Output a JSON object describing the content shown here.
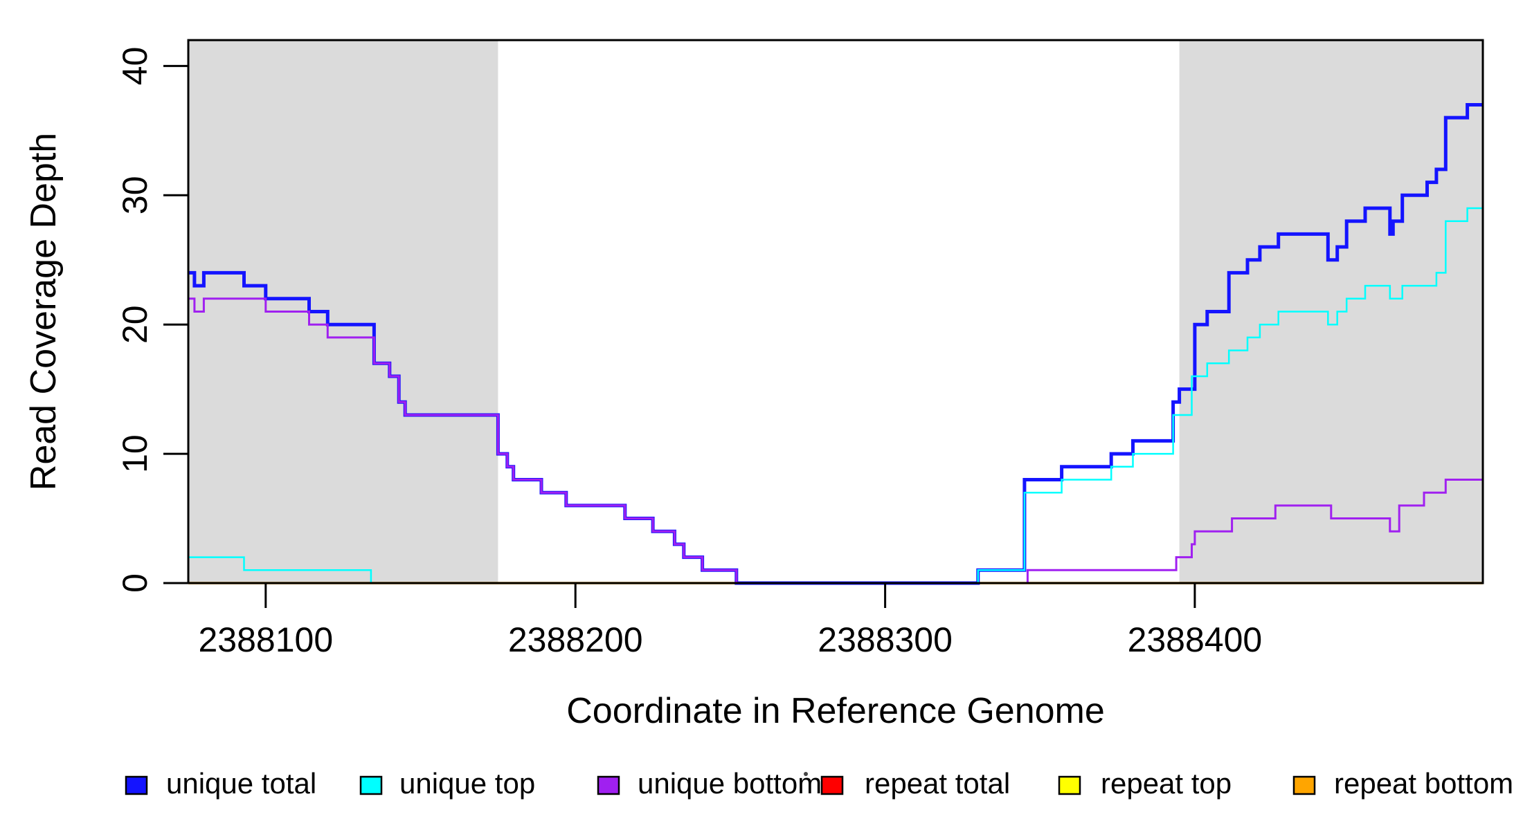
{
  "figure_title": "",
  "y_axis": {
    "label": "Read Coverage Depth",
    "ticks": [
      0,
      10,
      20,
      30,
      40
    ],
    "range": [
      0,
      42
    ]
  },
  "x_axis": {
    "label": "Coordinate in Reference Genome",
    "ticks": [
      2388100,
      2388200,
      2388300,
      2388400
    ],
    "range": [
      2388075,
      2388493
    ]
  },
  "shaded_repeat_regions": [
    {
      "from": 2388075,
      "to": 2388175
    },
    {
      "from": 2388395,
      "to": 2388493
    }
  ],
  "colors": {
    "shade": "#dbdbdb",
    "axis": "#000000",
    "unique_total": "#1414ff",
    "unique_top": "#00ffff",
    "unique_bottom": "#a020f0",
    "repeat_total": "#ff0000",
    "repeat_top": "#ffff00",
    "repeat_bottom": "#ffa500"
  },
  "legend": {
    "items": [
      {
        "label": "unique total",
        "color": "#1414ff"
      },
      {
        "label": "unique top",
        "color": "#00ffff"
      },
      {
        "label": "unique bottom",
        "color": "#a020f0"
      },
      {
        "label": "repeat total",
        "color": "#ff0000"
      },
      {
        "label": "repeat top",
        "color": "#ffff00"
      },
      {
        "label": "repeat bottom",
        "color": "#ffa500"
      }
    ]
  },
  "chart_data": {
    "type": "line",
    "step": "after",
    "title": "",
    "xlabel": "Coordinate in Reference Genome",
    "ylabel": "Read Coverage Depth",
    "xlim": [
      2388075,
      2388493
    ],
    "ylim": [
      0,
      42
    ],
    "grid": false,
    "legend_position": "bottom",
    "series": [
      {
        "name": "repeat total",
        "color": "#ff0000",
        "width": 2,
        "points": [
          [
            2388075,
            0
          ]
        ]
      },
      {
        "name": "repeat top",
        "color": "#ffff00",
        "width": 2,
        "points": [
          [
            2388075,
            0
          ]
        ]
      },
      {
        "name": "repeat bottom",
        "color": "#ffa500",
        "width": 3.5,
        "points": [
          [
            2388075,
            0
          ]
        ]
      },
      {
        "name": "unique total",
        "color": "#1414ff",
        "width": 5,
        "points": [
          [
            2388075,
            24
          ],
          [
            2388077,
            23
          ],
          [
            2388080,
            24
          ],
          [
            2388093,
            23
          ],
          [
            2388100,
            22
          ],
          [
            2388114,
            21
          ],
          [
            2388120,
            20
          ],
          [
            2388135,
            17
          ],
          [
            2388140,
            16
          ],
          [
            2388143,
            14
          ],
          [
            2388145,
            13
          ],
          [
            2388175,
            10
          ],
          [
            2388178,
            9
          ],
          [
            2388180,
            8
          ],
          [
            2388189,
            7
          ],
          [
            2388197,
            6
          ],
          [
            2388216,
            5
          ],
          [
            2388225,
            4
          ],
          [
            2388232,
            3
          ],
          [
            2388235,
            2
          ],
          [
            2388241,
            1
          ],
          [
            2388252,
            0
          ],
          [
            2388330,
            1
          ],
          [
            2388345,
            8
          ],
          [
            2388357,
            9
          ],
          [
            2388373,
            10
          ],
          [
            2388380,
            11
          ],
          [
            2388393,
            14
          ],
          [
            2388395,
            15
          ],
          [
            2388400,
            20
          ],
          [
            2388404,
            21
          ],
          [
            2388411,
            24
          ],
          [
            2388417,
            25
          ],
          [
            2388421,
            26
          ],
          [
            2388427,
            27
          ],
          [
            2388443,
            25
          ],
          [
            2388446,
            26
          ],
          [
            2388449,
            28
          ],
          [
            2388455,
            29
          ],
          [
            2388463,
            27
          ],
          [
            2388464,
            28
          ],
          [
            2388467,
            30
          ],
          [
            2388475,
            31
          ],
          [
            2388478,
            32
          ],
          [
            2388481,
            36
          ],
          [
            2388488,
            37
          ]
        ]
      },
      {
        "name": "unique top",
        "color": "#00ffff",
        "width": 2.5,
        "points": [
          [
            2388075,
            2
          ],
          [
            2388093,
            1
          ],
          [
            2388134,
            0
          ],
          [
            2388330,
            1
          ],
          [
            2388345,
            7
          ],
          [
            2388357,
            8
          ],
          [
            2388373,
            9
          ],
          [
            2388380,
            10
          ],
          [
            2388393,
            13
          ],
          [
            2388399,
            16
          ],
          [
            2388404,
            17
          ],
          [
            2388411,
            18
          ],
          [
            2388417,
            19
          ],
          [
            2388421,
            20
          ],
          [
            2388427,
            21
          ],
          [
            2388443,
            20
          ],
          [
            2388446,
            21
          ],
          [
            2388449,
            22
          ],
          [
            2388455,
            23
          ],
          [
            2388463,
            22
          ],
          [
            2388467,
            23
          ],
          [
            2388478,
            24
          ],
          [
            2388481,
            28
          ],
          [
            2388488,
            29
          ]
        ]
      },
      {
        "name": "unique bottom",
        "color": "#a020f0",
        "width": 3,
        "points": [
          [
            2388075,
            22
          ],
          [
            2388077,
            21
          ],
          [
            2388080,
            22
          ],
          [
            2388100,
            21
          ],
          [
            2388114,
            20
          ],
          [
            2388120,
            19
          ],
          [
            2388135,
            17
          ],
          [
            2388140,
            16
          ],
          [
            2388143,
            14
          ],
          [
            2388145,
            13
          ],
          [
            2388175,
            10
          ],
          [
            2388178,
            9
          ],
          [
            2388180,
            8
          ],
          [
            2388189,
            7
          ],
          [
            2388197,
            6
          ],
          [
            2388216,
            5
          ],
          [
            2388225,
            4
          ],
          [
            2388232,
            3
          ],
          [
            2388235,
            2
          ],
          [
            2388241,
            1
          ],
          [
            2388252,
            0
          ],
          [
            2388346,
            1
          ],
          [
            2388394,
            2
          ],
          [
            2388399,
            3
          ],
          [
            2388400,
            4
          ],
          [
            2388412,
            5
          ],
          [
            2388426,
            6
          ],
          [
            2388444,
            5
          ],
          [
            2388463,
            4
          ],
          [
            2388466,
            6
          ],
          [
            2388474,
            7
          ],
          [
            2388481,
            8
          ]
        ]
      }
    ]
  }
}
